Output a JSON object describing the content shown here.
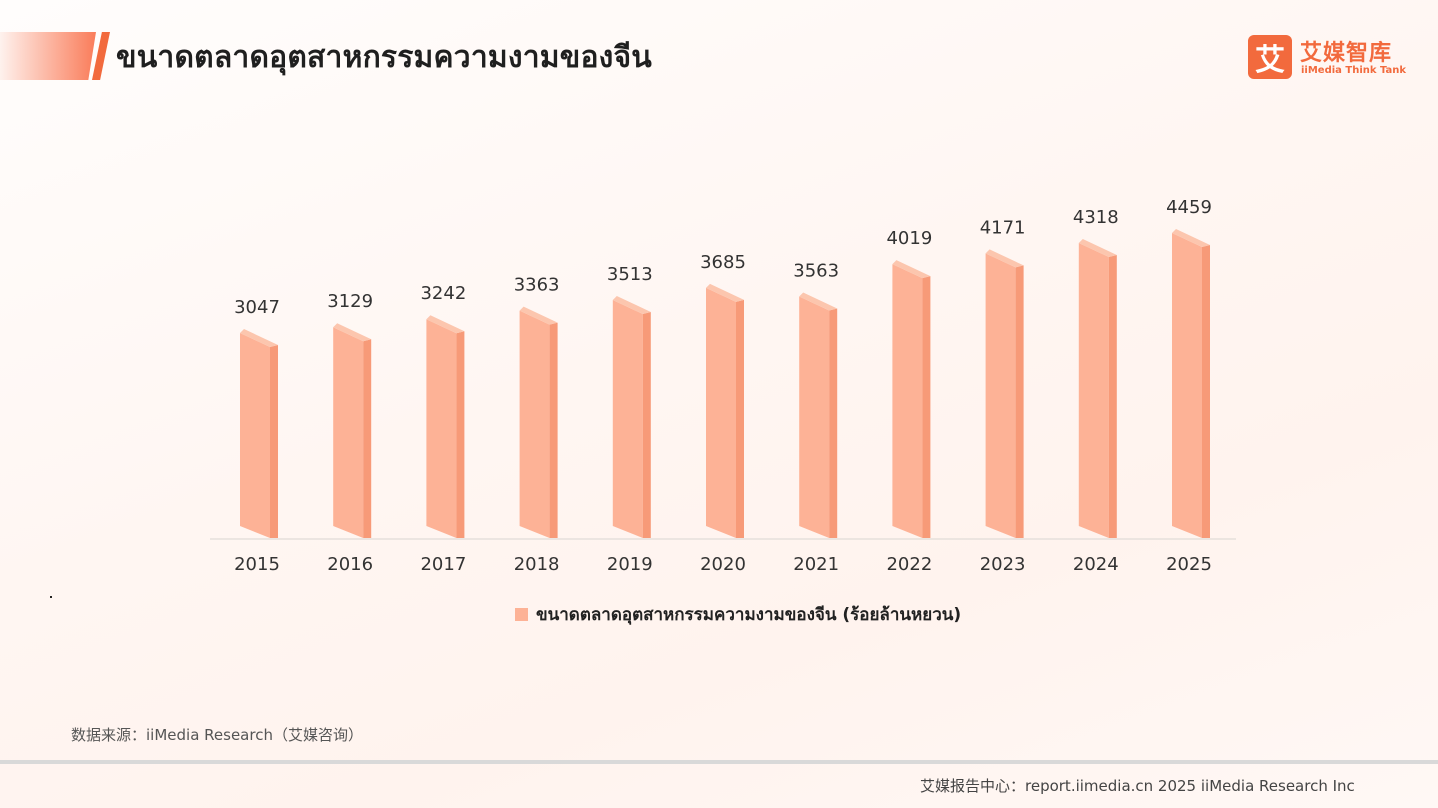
{
  "header": {
    "title": "ขนาดตลาดอุตสาหกรรมความงามของจีน"
  },
  "logo": {
    "mark": "艾",
    "name_cn": "艾媒智库",
    "name_en": "iiMedia Think Tank"
  },
  "chart_data": {
    "type": "bar",
    "title": "",
    "categories": [
      "2015",
      "2016",
      "2017",
      "2018",
      "2019",
      "2020",
      "2021",
      "2022",
      "2023",
      "2024",
      "2025"
    ],
    "series": [
      {
        "name": "ขนาดตลาดอุตสาหกรรมความงามของจีน (ร้อยล้านหยวน)",
        "values": [
          3047,
          3129,
          3242,
          3363,
          3513,
          3685,
          3563,
          4019,
          4171,
          4318,
          4459
        ]
      }
    ],
    "xlabel": "",
    "ylabel": "",
    "ylim": [
      0,
      4459
    ],
    "grid": false,
    "legend": "bottom-center",
    "colors": {
      "bar_front": "#fdb296",
      "bar_side": "#f79a78",
      "bar_top": "#fcc6ae"
    }
  },
  "footnote": {
    "source": "数据来源：iiMedia Research（艾媒咨询）"
  },
  "footer": {
    "text": "艾媒报告中心：report.iimedia.cn   2025 iiMedia Research Inc"
  }
}
